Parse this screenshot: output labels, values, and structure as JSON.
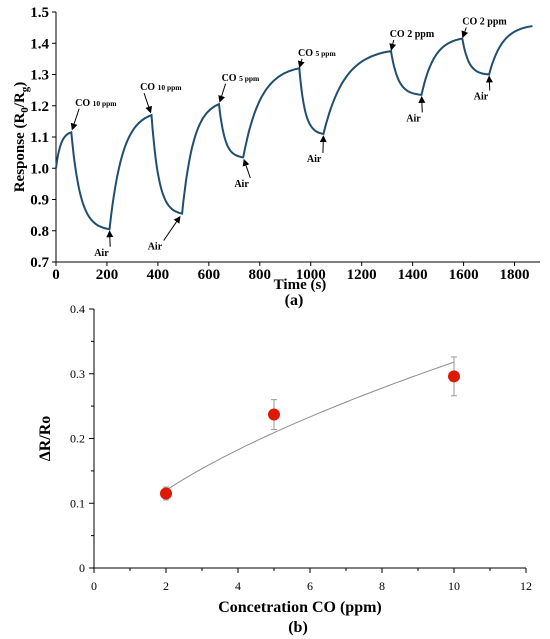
{
  "chart_data": [
    {
      "type": "line",
      "panel_label": "(a)",
      "xlabel": "Time (s)",
      "ylabel": "Response (R",
      "ylabel_sub0": "0",
      "ylabel_mid": "/R",
      "ylabel_sub1": "g",
      "ylabel_end": ")",
      "xlim": [
        0,
        1900
      ],
      "ylim": [
        0.7,
        1.5
      ],
      "x_ticks": [
        0,
        200,
        400,
        600,
        800,
        1000,
        1200,
        1400,
        1600,
        1800
      ],
      "x_tick_labels": [
        "0",
        "200",
        "400",
        "600",
        "800",
        "1000",
        "1200",
        "1400",
        "1600",
        "1800"
      ],
      "y_ticks": [
        0.7,
        0.8,
        0.9,
        1.0,
        1.1,
        1.2,
        1.3,
        1.4,
        1.5
      ],
      "y_tick_labels": [
        "0.7",
        "0.8",
        "0.9",
        "1.0",
        "1.1",
        "1.2",
        "1.3",
        "1.4",
        "1.5"
      ],
      "line_color": "#1f4e6e",
      "segments": [
        {
          "phase": "exposure",
          "x0": 0,
          "x1": 60,
          "y0": 1.0,
          "y1": 1.115
        },
        {
          "phase": "recovery",
          "x0": 60,
          "x1": 210,
          "y0": 1.115,
          "y1": 0.805
        },
        {
          "phase": "exposure",
          "x0": 210,
          "x1": 375,
          "y0": 0.805,
          "y1": 1.17
        },
        {
          "phase": "recovery",
          "x0": 375,
          "x1": 495,
          "y0": 1.17,
          "y1": 0.855
        },
        {
          "phase": "exposure",
          "x0": 495,
          "x1": 640,
          "y0": 0.855,
          "y1": 1.205
        },
        {
          "phase": "recovery",
          "x0": 640,
          "x1": 735,
          "y0": 1.205,
          "y1": 1.035
        },
        {
          "phase": "exposure",
          "x0": 735,
          "x1": 955,
          "y0": 1.035,
          "y1": 1.32
        },
        {
          "phase": "recovery",
          "x0": 955,
          "x1": 1050,
          "y0": 1.32,
          "y1": 1.11
        },
        {
          "phase": "exposure",
          "x0": 1050,
          "x1": 1315,
          "y0": 1.11,
          "y1": 1.375
        },
        {
          "phase": "recovery",
          "x0": 1315,
          "x1": 1435,
          "y0": 1.375,
          "y1": 1.235
        },
        {
          "phase": "exposure",
          "x0": 1435,
          "x1": 1595,
          "y0": 1.235,
          "y1": 1.415
        },
        {
          "phase": "recovery",
          "x0": 1595,
          "x1": 1700,
          "y0": 1.415,
          "y1": 1.3
        },
        {
          "phase": "exposure",
          "x0": 1700,
          "x1": 1870,
          "y0": 1.3,
          "y1": 1.455
        }
      ],
      "annotations": [
        {
          "main": "CO ",
          "sub": "10 ppm",
          "tx": 75,
          "ty": 1.2,
          "ax": 60,
          "ay": 1.115
        },
        {
          "main": "Air",
          "sub": "",
          "tx": 150,
          "ty": 0.72,
          "ax": 210,
          "ay": 0.805
        },
        {
          "main": "CO ",
          "sub": "10 ppm",
          "tx": 330,
          "ty": 1.25,
          "ax": 375,
          "ay": 1.17
        },
        {
          "main": "Air",
          "sub": "",
          "tx": 360,
          "ty": 0.74,
          "ax": 495,
          "ay": 0.855
        },
        {
          "main": "CO ",
          "sub": "5 ppm",
          "tx": 650,
          "ty": 1.28,
          "ax": 640,
          "ay": 1.205
        },
        {
          "main": "Air",
          "sub": "",
          "tx": 700,
          "ty": 0.94,
          "ax": 735,
          "ay": 1.035
        },
        {
          "main": "CO ",
          "sub": "5 ppm",
          "tx": 950,
          "ty": 1.36,
          "ax": 955,
          "ay": 1.32
        },
        {
          "main": "Air",
          "sub": "",
          "tx": 985,
          "ty": 1.02,
          "ax": 1050,
          "ay": 1.11
        },
        {
          "main": "CO 2 ppm",
          "sub": "",
          "tx": 1310,
          "ty": 1.42,
          "ax": 1315,
          "ay": 1.375
        },
        {
          "main": "Air",
          "sub": "",
          "tx": 1375,
          "ty": 1.15,
          "ax": 1435,
          "ay": 1.235
        },
        {
          "main": "CO 2 ppm",
          "sub": "",
          "tx": 1595,
          "ty": 1.46,
          "ax": 1595,
          "ay": 1.415
        },
        {
          "main": "Air",
          "sub": "",
          "tx": 1640,
          "ty": 1.22,
          "ax": 1700,
          "ay": 1.3
        }
      ]
    },
    {
      "type": "scatter",
      "panel_label": "(b)",
      "xlabel": "Concetration CO (ppm)",
      "ylabel": "ΔR/Ro",
      "xlim": [
        0,
        12
      ],
      "ylim": [
        0,
        0.4
      ],
      "x_ticks": [
        0,
        2,
        4,
        6,
        8,
        10,
        12
      ],
      "x_tick_labels": [
        "0",
        "2",
        "4",
        "6",
        "8",
        "10",
        "12"
      ],
      "x_minor_ticks": [
        1,
        3,
        5,
        7,
        9,
        11
      ],
      "y_ticks": [
        0,
        0.1,
        0.2,
        0.3,
        0.4
      ],
      "y_tick_labels": [
        "0",
        "0.1",
        "0.2",
        "0.3",
        "0.4"
      ],
      "y_minor_ticks": [
        0.05,
        0.15,
        0.25,
        0.35
      ],
      "marker_color": "#dd1a00",
      "points": [
        {
          "x": 2,
          "y": 0.115,
          "err": 0.01
        },
        {
          "x": 5,
          "y": 0.237,
          "err": 0.023
        },
        {
          "x": 10,
          "y": 0.296,
          "err": 0.03
        }
      ],
      "trendline": {
        "type": "power",
        "x_from": 2,
        "x_to": 10,
        "y_from": 0.12,
        "y_to": 0.318,
        "color": "#8c8c8c"
      }
    }
  ]
}
